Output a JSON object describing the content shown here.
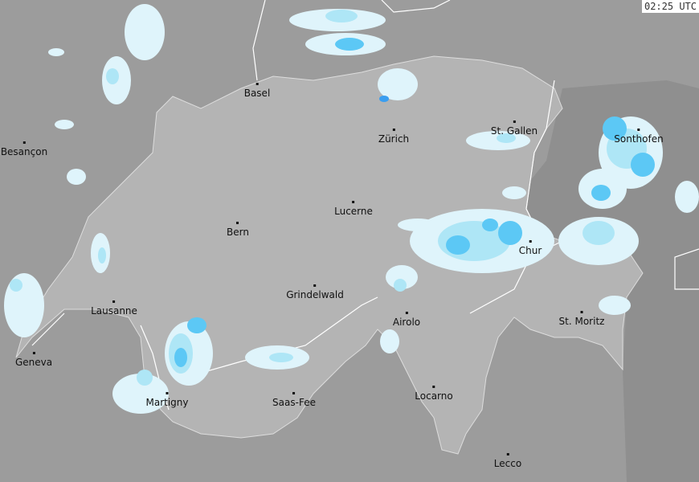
{
  "timestamp": "02:25 UTC",
  "colors": {
    "outside": "#9c9c9c",
    "country": "#b4b4b4",
    "neighbor_dark": "#8f8f8f",
    "border": "#ffffff",
    "rain_light": "#dff4fb",
    "rain_mid": "#aee6f6",
    "rain_heavy": "#5cc8f5",
    "rain_strong": "#3a9ef0"
  },
  "cities": [
    {
      "name": "Basel"
    },
    {
      "name": "Zürich"
    },
    {
      "name": "St. Gallen"
    },
    {
      "name": "Besançon"
    },
    {
      "name": "Sonthofen"
    },
    {
      "name": "Bern"
    },
    {
      "name": "Lucerne"
    },
    {
      "name": "Chur"
    },
    {
      "name": "Grindelwald"
    },
    {
      "name": "Lausanne"
    },
    {
      "name": "Airolo"
    },
    {
      "name": "St. Moritz"
    },
    {
      "name": "Geneva"
    },
    {
      "name": "Martigny"
    },
    {
      "name": "Saas-Fee"
    },
    {
      "name": "Locarno"
    },
    {
      "name": "Lecco"
    }
  ]
}
